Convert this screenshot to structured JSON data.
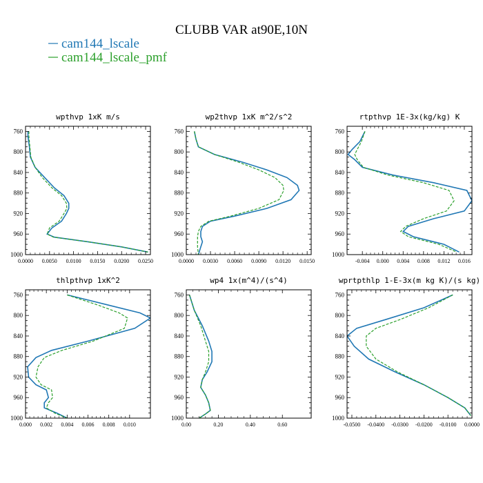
{
  "title": "CLUBB VAR at90E,10N",
  "legend": [
    {
      "label": "cam144_lscale",
      "color": "#1f77b4",
      "dash": "solid"
    },
    {
      "label": "cam144_lscale_pmf",
      "color": "#2ca02c",
      "dash": "dashed"
    }
  ],
  "chart_data": [
    {
      "type": "line",
      "title": "wpthvp  1xK m/s",
      "ylim": [
        1000,
        750
      ],
      "xlim": [
        0,
        0.026
      ],
      "yticks": [
        "760",
        "800",
        "840",
        "880",
        "920",
        "960",
        "1000"
      ],
      "xticks": [
        "0.0000",
        "0.0050",
        "0.0100",
        "0.0150",
        "0.0200",
        "0.0250"
      ],
      "series": [
        {
          "name": "cam144_lscale",
          "x": [
            0.0005,
            0.0005,
            0.0008,
            0.001,
            0.002,
            0.004,
            0.006,
            0.008,
            0.009,
            0.009,
            0.0085,
            0.0075,
            0.0055,
            0.0045,
            0.006,
            0.013,
            0.02,
            0.0255
          ],
          "y": [
            760,
            770,
            790,
            810,
            830,
            850,
            870,
            885,
            900,
            910,
            920,
            935,
            948,
            960,
            966,
            975,
            985,
            995
          ]
        },
        {
          "name": "cam144_lscale_pmf",
          "x": [
            0.0007,
            0.0007,
            0.0009,
            0.0011,
            0.002,
            0.0035,
            0.0055,
            0.0075,
            0.0085,
            0.0086,
            0.008,
            0.007,
            0.005,
            0.0045,
            0.0058,
            0.013,
            0.02,
            0.0255
          ],
          "y": [
            760,
            770,
            790,
            810,
            830,
            850,
            870,
            885,
            900,
            910,
            920,
            935,
            948,
            960,
            966,
            975,
            985,
            995
          ]
        }
      ]
    },
    {
      "type": "line",
      "title": "wp2thvp  1xK m^2/s^2",
      "ylim": [
        1000,
        750
      ],
      "xlim": [
        0,
        0.0155
      ],
      "yticks": [
        "760",
        "800",
        "840",
        "880",
        "920",
        "960",
        "1000"
      ],
      "xticks": [
        "0.0000",
        "0.0030",
        "0.0060",
        "0.0090",
        "0.0120",
        "0.0150"
      ],
      "series": [
        {
          "name": "cam144_lscale",
          "x": [
            0.001,
            0.0012,
            0.0015,
            0.0035,
            0.007,
            0.01,
            0.0125,
            0.0138,
            0.014,
            0.013,
            0.01,
            0.006,
            0.003,
            0.002,
            0.0018,
            0.0018,
            0.002,
            0.0018,
            0.0015
          ],
          "y": [
            760,
            775,
            790,
            805,
            820,
            835,
            850,
            865,
            875,
            893,
            910,
            925,
            935,
            945,
            955,
            965,
            975,
            985,
            1000
          ]
        },
        {
          "name": "cam144_lscale_pmf",
          "x": [
            0.001,
            0.0012,
            0.0015,
            0.0035,
            0.0065,
            0.009,
            0.011,
            0.012,
            0.0121,
            0.0115,
            0.009,
            0.0055,
            0.0028,
            0.0018,
            0.0015,
            0.0014,
            0.0014,
            0.0014,
            0.0015
          ],
          "y": [
            760,
            775,
            790,
            805,
            820,
            835,
            850,
            865,
            875,
            893,
            910,
            925,
            935,
            945,
            955,
            965,
            975,
            985,
            1000
          ]
        }
      ]
    },
    {
      "type": "line",
      "title": "rtpthvp  1E-3x(kg/kg) K",
      "ylim": [
        1000,
        750
      ],
      "xlim": [
        -0.007,
        0.0175
      ],
      "yticks": [
        "760",
        "800",
        "840",
        "880",
        "920",
        "960",
        "1000"
      ],
      "xticks": [
        "-0.004",
        "0.000",
        "0.004",
        "0.008",
        "0.012",
        "0.016"
      ],
      "series": [
        {
          "name": "cam144_lscale",
          "x": [
            -0.0035,
            -0.0045,
            -0.006,
            -0.0068,
            -0.0055,
            -0.004,
            0.002,
            0.01,
            0.0165,
            0.0175,
            0.016,
            0.01,
            0.005,
            0.004,
            0.006,
            0.012,
            0.015
          ],
          "y": [
            760,
            780,
            795,
            805,
            815,
            830,
            845,
            860,
            875,
            895,
            915,
            930,
            945,
            955,
            965,
            980,
            995
          ]
        },
        {
          "name": "cam144_lscale_pmf",
          "x": [
            -0.0035,
            -0.0042,
            -0.005,
            -0.0055,
            -0.005,
            -0.0038,
            0.001,
            0.008,
            0.013,
            0.014,
            0.0125,
            0.008,
            0.0045,
            0.0035,
            0.005,
            0.011,
            0.0145
          ],
          "y": [
            760,
            780,
            795,
            805,
            815,
            830,
            845,
            860,
            875,
            895,
            915,
            930,
            945,
            955,
            965,
            980,
            995
          ]
        }
      ]
    },
    {
      "type": "line",
      "title": "thlpthvp  1xK^2",
      "ylim": [
        1000,
        750
      ],
      "xlim": [
        0,
        0.012
      ],
      "yticks": [
        "760",
        "800",
        "840",
        "880",
        "920",
        "960",
        "1000"
      ],
      "xticks": [
        "0.000",
        "0.002",
        "0.004",
        "0.006",
        "0.008",
        "0.010"
      ],
      "series": [
        {
          "name": "cam144_lscale",
          "x": [
            0.004,
            0.008,
            0.011,
            0.012,
            0.0105,
            0.006,
            0.0025,
            0.001,
            0.0002,
            0.0003,
            0.001,
            0.002,
            0.0022,
            0.0018,
            0.0018,
            0.003,
            0.004
          ],
          "y": [
            760,
            780,
            795,
            805,
            825,
            850,
            868,
            882,
            900,
            920,
            935,
            945,
            960,
            970,
            980,
            990,
            1000
          ]
        },
        {
          "name": "cam144_lscale_pmf",
          "x": [
            0.004,
            0.007,
            0.009,
            0.0098,
            0.0095,
            0.0065,
            0.0035,
            0.0018,
            0.0012,
            0.001,
            0.0015,
            0.0025,
            0.0026,
            0.0022,
            0.002,
            0.0028,
            0.004
          ],
          "y": [
            760,
            780,
            795,
            805,
            825,
            850,
            868,
            882,
            900,
            920,
            935,
            945,
            960,
            970,
            980,
            990,
            1000
          ]
        }
      ]
    },
    {
      "type": "line",
      "title": "wp4  1x(m^4)/(s^4)",
      "ylim": [
        1000,
        750
      ],
      "xlim": [
        0,
        0.78
      ],
      "yticks": [
        "760",
        "800",
        "840",
        "880",
        "920",
        "960",
        "1000"
      ],
      "xticks": [
        "0.00",
        "0.20",
        "0.40",
        "0.60"
      ],
      "series": [
        {
          "name": "cam144_lscale",
          "x": [
            0.02,
            0.05,
            0.1,
            0.14,
            0.16,
            0.16,
            0.13,
            0.1,
            0.09,
            0.12,
            0.14,
            0.15,
            0.12,
            0.08
          ],
          "y": [
            760,
            790,
            820,
            850,
            870,
            890,
            910,
            925,
            940,
            955,
            970,
            985,
            992,
            1000
          ]
        },
        {
          "name": "cam144_lscale_pmf",
          "x": [
            0.02,
            0.05,
            0.09,
            0.12,
            0.14,
            0.14,
            0.12,
            0.1,
            0.09,
            0.12,
            0.14,
            0.15,
            0.12,
            0.08
          ],
          "y": [
            760,
            790,
            820,
            850,
            870,
            890,
            910,
            925,
            940,
            955,
            970,
            985,
            992,
            1000
          ]
        }
      ]
    },
    {
      "type": "line",
      "title": "wprtpthlp  1-E-3x(m kg K)/(s kg)",
      "ylim": [
        1000,
        750
      ],
      "xlim": [
        -0.052,
        0.0
      ],
      "yticks": [
        "760",
        "800",
        "840",
        "880",
        "920",
        "960",
        "1000"
      ],
      "xticks": [
        "-0.0500",
        "-0.0400",
        "-0.0300",
        "-0.0200",
        "-0.0100",
        "0.0000"
      ],
      "series": [
        {
          "name": "cam144_lscale",
          "x": [
            -0.008,
            -0.02,
            -0.036,
            -0.048,
            -0.052,
            -0.049,
            -0.043,
            -0.032,
            -0.02,
            -0.01,
            -0.003,
            -0.0005
          ],
          "y": [
            760,
            785,
            808,
            825,
            840,
            860,
            885,
            910,
            935,
            960,
            980,
            995
          ]
        },
        {
          "name": "cam144_lscale_pmf",
          "x": [
            -0.008,
            -0.018,
            -0.03,
            -0.04,
            -0.044,
            -0.044,
            -0.04,
            -0.031,
            -0.02,
            -0.01,
            -0.003,
            -0.0005
          ],
          "y": [
            760,
            785,
            808,
            825,
            840,
            860,
            885,
            910,
            935,
            960,
            980,
            995
          ]
        }
      ]
    }
  ]
}
